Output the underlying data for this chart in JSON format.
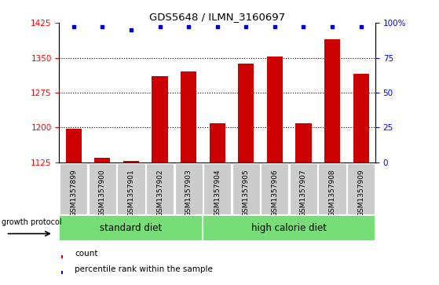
{
  "title": "GDS5648 / ILMN_3160697",
  "samples": [
    "GSM1357899",
    "GSM1357900",
    "GSM1357901",
    "GSM1357902",
    "GSM1357903",
    "GSM1357904",
    "GSM1357905",
    "GSM1357906",
    "GSM1357907",
    "GSM1357908",
    "GSM1357909"
  ],
  "counts": [
    1197,
    1135,
    1128,
    1310,
    1320,
    1210,
    1338,
    1352,
    1210,
    1390,
    1315
  ],
  "percentile_ranks": [
    97,
    97,
    95,
    97,
    97,
    97,
    97,
    97,
    97,
    97,
    97
  ],
  "ylim_left": [
    1125,
    1425
  ],
  "ylim_right": [
    0,
    100
  ],
  "yticks_left": [
    1125,
    1200,
    1275,
    1350,
    1425
  ],
  "yticks_right": [
    0,
    25,
    50,
    75,
    100
  ],
  "ytick_right_labels": [
    "0",
    "25",
    "50",
    "75",
    "100%"
  ],
  "bar_color": "#cc0000",
  "dot_color": "#0000cc",
  "standard_diet_count": 5,
  "group_label_standard": "standard diet",
  "group_label_high": "high calorie diet",
  "group_bg_color": "#77dd77",
  "sample_bg_color": "#cccccc",
  "growth_protocol_label": "growth protocol",
  "legend_count_label": "count",
  "legend_percentile_label": "percentile rank within the sample",
  "fig_width": 5.59,
  "fig_height": 3.63
}
